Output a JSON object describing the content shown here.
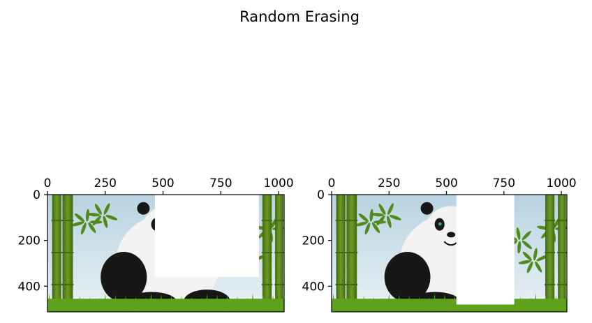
{
  "figure": {
    "title": "Random Erasing"
  },
  "chart_data": [
    {
      "type": "image",
      "title": "",
      "image_size": {
        "width": 1024,
        "height": 512
      },
      "xlim": [
        0,
        1024
      ],
      "ylim": [
        512,
        0
      ],
      "xticks": [
        0,
        250,
        500,
        750,
        1000
      ],
      "yticks": [
        0,
        200,
        400
      ],
      "x_axis_position": "top",
      "erased_region": {
        "x0": 465,
        "x1": 915,
        "y0": 0,
        "y1": 360
      }
    },
    {
      "type": "image",
      "title": "",
      "image_size": {
        "width": 1024,
        "height": 512
      },
      "xlim": [
        0,
        1024
      ],
      "ylim": [
        512,
        0
      ],
      "xticks": [
        0,
        250,
        500,
        750,
        1000
      ],
      "yticks": [
        0,
        200,
        400
      ],
      "x_axis_position": "top",
      "erased_region": {
        "x0": 543,
        "x1": 795,
        "y0": 0,
        "y1": 480
      }
    }
  ],
  "colors": {
    "sky_top": "#b9d3e0",
    "sky_bottom": "#e9f1f5",
    "bamboo": "#6f9a24",
    "bamboo_dark": "#3f6a12",
    "leaf": "#4f8a1a",
    "grass": "#5da21a",
    "fur_white": "#f3f3f3",
    "fur_black": "#171717",
    "erase": "#ffffff"
  }
}
